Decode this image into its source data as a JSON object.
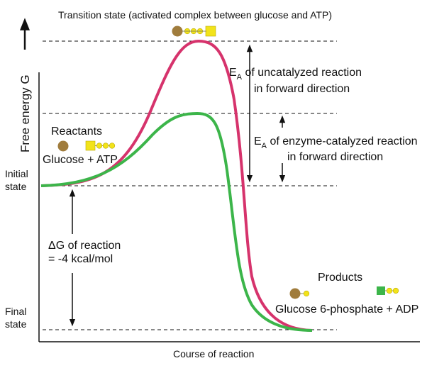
{
  "y_axis": {
    "label": "Free energy G"
  },
  "x_axis": {
    "label": "Course of reaction"
  },
  "levels": {
    "initial_state": [
      "Initial",
      "state"
    ],
    "final_state": [
      "Final",
      "state"
    ]
  },
  "transition_state": {
    "label": "Transition state (activated complex between glucose and ATP)"
  },
  "reactants": {
    "title": "Reactants",
    "label": "Glucose + ATP"
  },
  "products": {
    "title": "Products",
    "label": "Glucose 6-phosphate + ADP"
  },
  "uncatalyzed": {
    "ea_symbol": "E",
    "ea_subscript": "A",
    "line1": " of uncatalyzed reaction",
    "line2": "in forward direction"
  },
  "catalyzed": {
    "ea_symbol": "E",
    "ea_subscript": "A",
    "line1": " of enzyme-catalyzed reaction",
    "line2": "in forward direction"
  },
  "delta_g": {
    "line1": "ΔG of reaction",
    "line2": "= -4 kcal/mol"
  },
  "colors": {
    "uncatalyzed_curve": "#d6336c",
    "catalyzed_curve": "#3cb54a",
    "glucose": "#a07c3c",
    "phosphate": "#f2e31a",
    "adenosine": "#f2e31a",
    "adp_adenosine": "#3cb54a"
  },
  "icons": {
    "glucose": "brown-circle",
    "phosphate": "yellow-small-circle",
    "adenosine": "yellow-square"
  }
}
